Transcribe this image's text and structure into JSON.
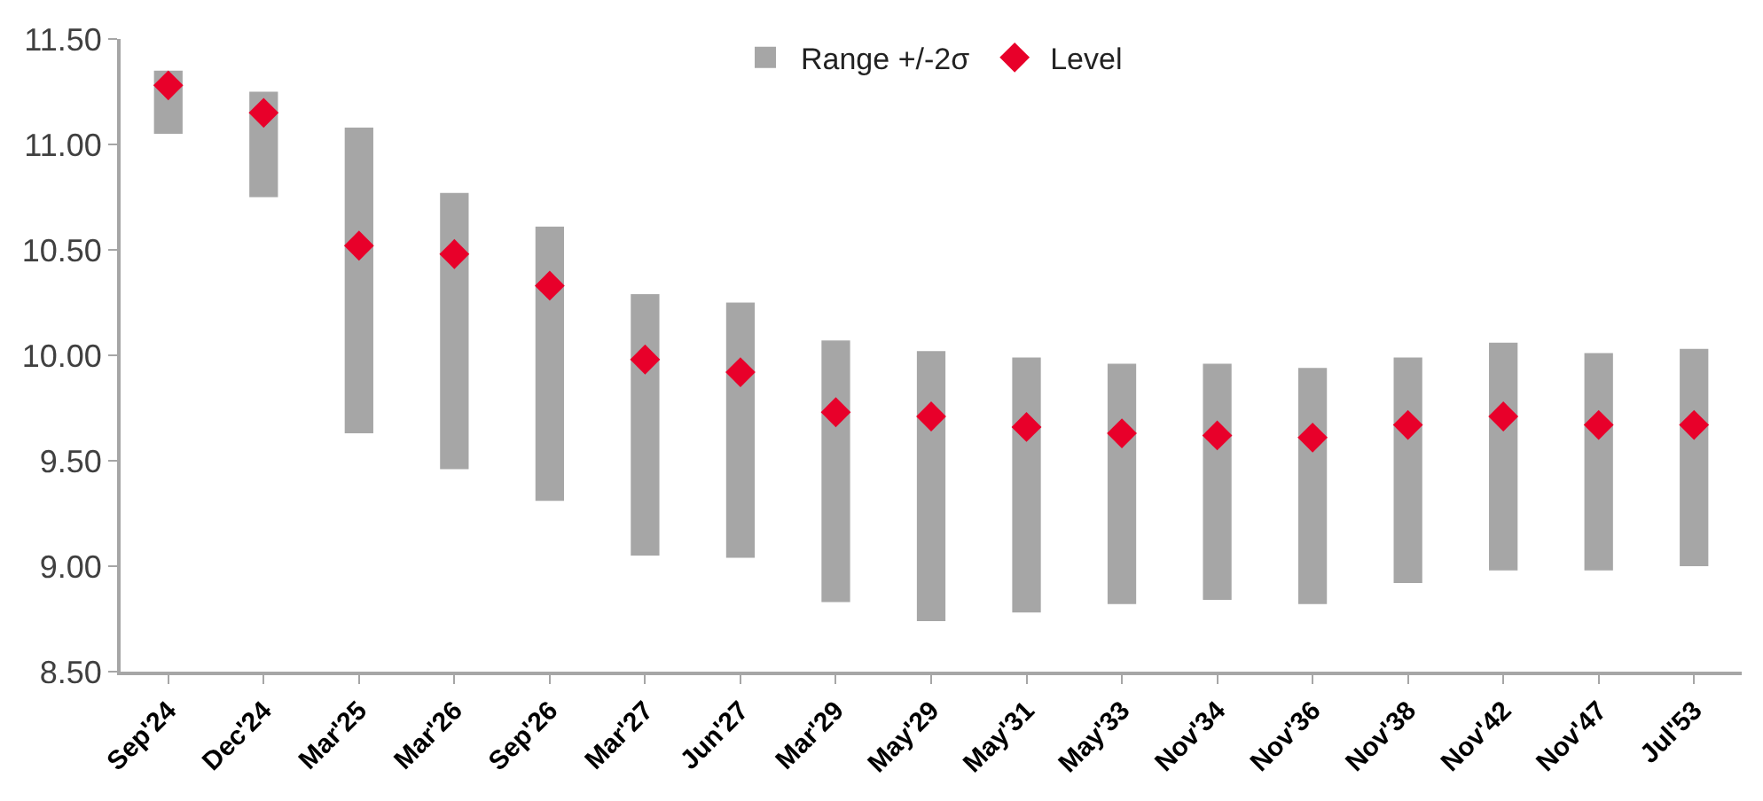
{
  "chart_data": {
    "type": "bar",
    "categories": [
      "Sep'24",
      "Dec'24",
      "Mar'25",
      "Mar'26",
      "Sep'26",
      "Mar'27",
      "Jun'27",
      "Mar'29",
      "May'29",
      "May'31",
      "May'33",
      "Nov'34",
      "Nov'36",
      "Nov'38",
      "Nov'42",
      "Nov'47",
      "Jul'53"
    ],
    "series": [
      {
        "name": "Range +/-2σ",
        "color": "#a6a6a6",
        "base": [
          11.05,
          10.75,
          9.63,
          9.46,
          9.31,
          9.05,
          9.04,
          8.83,
          8.74,
          8.78,
          8.82,
          8.84,
          8.82,
          8.92,
          8.98,
          8.98,
          9.0
        ],
        "values": [
          0.3,
          0.5,
          1.45,
          1.31,
          1.3,
          1.24,
          1.21,
          1.24,
          1.28,
          1.21,
          1.14,
          1.12,
          1.12,
          1.07,
          1.08,
          1.03,
          1.03
        ]
      },
      {
        "name": "Level",
        "type": "scatter",
        "marker": "diamond",
        "color": "#e8002a",
        "values": [
          11.28,
          11.15,
          10.52,
          10.48,
          10.33,
          9.98,
          9.92,
          9.73,
          9.71,
          9.66,
          9.63,
          9.62,
          9.61,
          9.67,
          9.71,
          9.67,
          9.67
        ]
      }
    ],
    "ylim": [
      8.5,
      11.5
    ],
    "yticks": [
      {
        "value": 8.5,
        "label": "8.50"
      },
      {
        "value": 9,
        "label": "9.00"
      },
      {
        "value": 9.5,
        "label": "9.50"
      },
      {
        "value": 10,
        "label": "10.00"
      },
      {
        "value": 10.5,
        "label": "10.50"
      },
      {
        "value": 11,
        "label": "11.00"
      },
      {
        "value": 11.5,
        "label": "11.50"
      }
    ],
    "legend": "top"
  }
}
